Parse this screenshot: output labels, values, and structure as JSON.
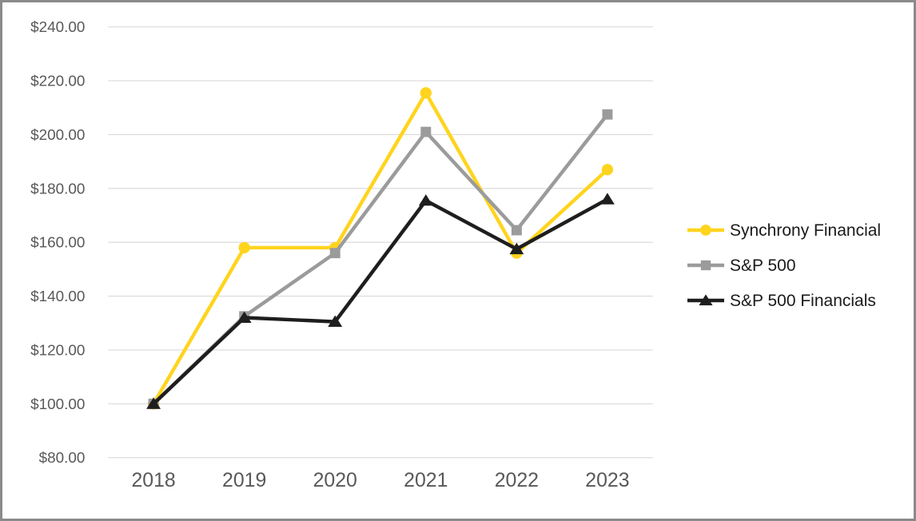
{
  "frame": {
    "background_color": "#ffffff",
    "border_color": "#8a8a8a"
  },
  "chart_data": {
    "type": "line",
    "title": "",
    "xlabel": "",
    "ylabel": "",
    "categories": [
      "2018",
      "2019",
      "2020",
      "2021",
      "2022",
      "2023"
    ],
    "series": [
      {
        "name": "Synchrony Financial",
        "color": "#FFD41E",
        "marker": "circle",
        "values": [
          100.0,
          158.0,
          158.0,
          215.5,
          156.0,
          187.0
        ]
      },
      {
        "name": "S&P 500",
        "color": "#9B9B9B",
        "marker": "square",
        "values": [
          100.0,
          132.5,
          156.0,
          201.0,
          164.5,
          207.5
        ]
      },
      {
        "name": "S&P 500 Financials",
        "color": "#1E1E1E",
        "marker": "triangle",
        "values": [
          100.0,
          132.0,
          130.5,
          175.5,
          157.5,
          176.0
        ]
      }
    ],
    "ylim": [
      80,
      240
    ],
    "y_tick_values": [
      240,
      220,
      200,
      180,
      160,
      140,
      120,
      100,
      80
    ],
    "y_tick_labels": [
      "$240.00",
      "$220.00",
      "$200.00",
      "$180.00",
      "$160.00",
      "$140.00",
      "$120.00",
      "$100.00",
      "$80.00"
    ],
    "grid": true,
    "gridline_color": "#D9D9D9",
    "axis_label_color": "#595959",
    "legend_position": "right",
    "legend_text_color": "#1a1a1a"
  }
}
